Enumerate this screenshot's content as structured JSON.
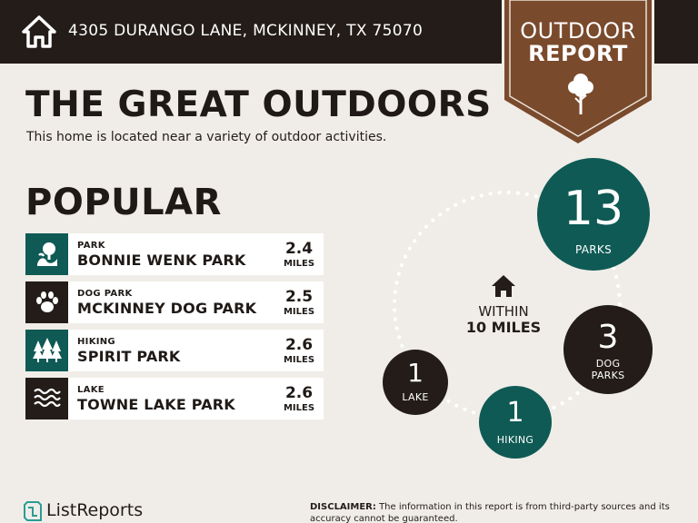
{
  "header": {
    "address": "4305 DURANGO LANE, MCKINNEY, TX 75070",
    "badge_line1": "OUTDOOR",
    "badge_line2": "REPORT"
  },
  "main": {
    "title": "THE GREAT OUTDOORS",
    "subtitle": "This home is located near a variety of outdoor activities.",
    "popular_heading": "POPULAR"
  },
  "popular_items": [
    {
      "category": "PARK",
      "name": "BONNIE WENK PARK",
      "distance": "2.4",
      "unit": "MILES",
      "icon": "park-icon",
      "icon_bg": "#0f5a55"
    },
    {
      "category": "DOG PARK",
      "name": "MCKINNEY DOG PARK",
      "distance": "2.5",
      "unit": "MILES",
      "icon": "paw-icon",
      "icon_bg": "#231c18"
    },
    {
      "category": "HIKING",
      "name": "SPIRIT PARK",
      "distance": "2.6",
      "unit": "MILES",
      "icon": "trees-icon",
      "icon_bg": "#0f5a55"
    },
    {
      "category": "LAKE",
      "name": "TOWNE LAKE PARK",
      "distance": "2.6",
      "unit": "MILES",
      "icon": "waves-icon",
      "icon_bg": "#231c18"
    }
  ],
  "summary": {
    "within_line1": "WITHIN",
    "within_line2": "10 MILES",
    "parks": {
      "count": "13",
      "label": "PARKS"
    },
    "dog_parks": {
      "count": "3",
      "label_line1": "DOG",
      "label_line2": "PARKS"
    },
    "lake": {
      "count": "1",
      "label": "LAKE"
    },
    "hiking": {
      "count": "1",
      "label": "HIKING"
    }
  },
  "footer": {
    "brand": "ListReports",
    "disclaimer_label": "DISCLAIMER:",
    "disclaimer_text": " The information in this report is from third-party sources and its accuracy cannot be guaranteed."
  },
  "colors": {
    "dark": "#231c18",
    "teal": "#0f5a55",
    "brown": "#7a4a2c",
    "background": "#f0ede8"
  }
}
